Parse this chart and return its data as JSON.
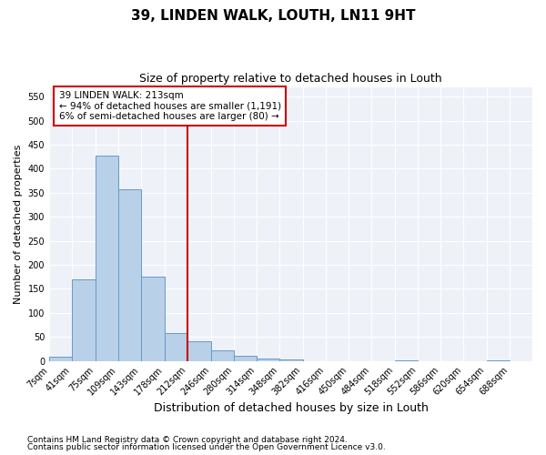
{
  "title": "39, LINDEN WALK, LOUTH, LN11 9HT",
  "subtitle": "Size of property relative to detached houses in Louth",
  "xlabel": "Distribution of detached houses by size in Louth",
  "ylabel": "Number of detached properties",
  "footnote1": "Contains HM Land Registry data © Crown copyright and database right 2024.",
  "footnote2": "Contains public sector information licensed under the Open Government Licence v3.0.",
  "annotation_line1": "39 LINDEN WALK: 213sqm",
  "annotation_line2": "← 94% of detached houses are smaller (1,191)",
  "annotation_line3": "6% of semi-detached houses are larger (80) →",
  "bar_color": "#b8d0e8",
  "bar_edge_color": "#6699cc",
  "vline_color": "#cc0000",
  "vline_x": 212,
  "annotation_box_color": "#cc0000",
  "bin_edges": [
    7,
    41,
    75,
    109,
    143,
    178,
    212,
    246,
    280,
    314,
    348,
    382,
    416,
    450,
    484,
    518,
    552,
    586,
    620,
    654,
    688,
    722
  ],
  "bar_heights": [
    8,
    170,
    428,
    357,
    175,
    57,
    40,
    21,
    10,
    5,
    3,
    0,
    0,
    0,
    0,
    2,
    0,
    0,
    0,
    2,
    0
  ],
  "tick_labels": [
    "7sqm",
    "41sqm",
    "75sqm",
    "109sqm",
    "143sqm",
    "178sqm",
    "212sqm",
    "246sqm",
    "280sqm",
    "314sqm",
    "348sqm",
    "382sqm",
    "416sqm",
    "450sqm",
    "484sqm",
    "518sqm",
    "552sqm",
    "586sqm",
    "620sqm",
    "654sqm",
    "688sqm"
  ],
  "ylim": [
    0,
    570
  ],
  "yticks": [
    0,
    50,
    100,
    150,
    200,
    250,
    300,
    350,
    400,
    450,
    500,
    550
  ],
  "background_color": "#eef2f8",
  "grid_color": "#ffffff",
  "title_fontsize": 11,
  "subtitle_fontsize": 9,
  "axis_label_fontsize": 9,
  "ylabel_fontsize": 8,
  "tick_label_fontsize": 7,
  "footnote_fontsize": 6.5
}
